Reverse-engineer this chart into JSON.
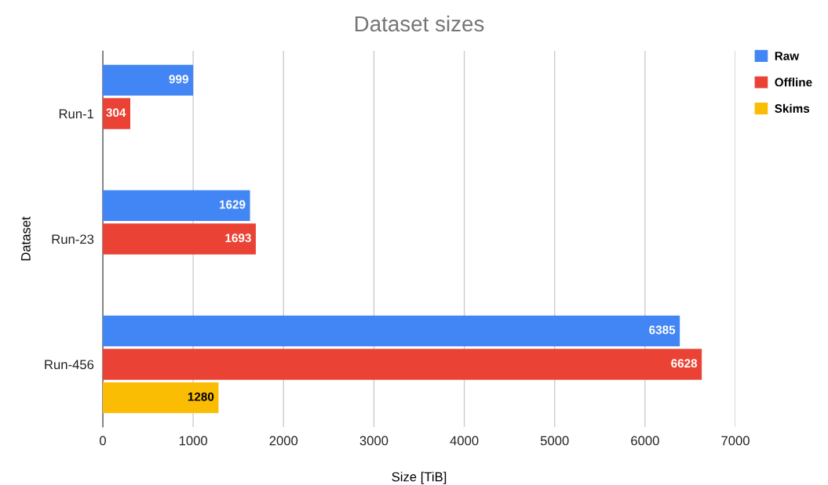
{
  "chart_data": {
    "type": "bar",
    "orientation": "horizontal",
    "title": "Dataset sizes",
    "xlabel": "Size [TiB]",
    "ylabel": "Dataset",
    "categories": [
      "Run-1",
      "Run-23",
      "Run-456"
    ],
    "series": [
      {
        "name": "Raw",
        "color": "#4285f4",
        "values": [
          999,
          1629,
          6385
        ]
      },
      {
        "name": "Offline",
        "color": "#ea4335",
        "values": [
          304,
          1693,
          6628
        ]
      },
      {
        "name": "Skims",
        "color": "#fbbc04",
        "values": [
          null,
          null,
          1280
        ]
      }
    ],
    "xlim": [
      0,
      7000
    ],
    "xticks": [
      0,
      1000,
      2000,
      3000,
      4000,
      5000,
      6000,
      7000
    ],
    "grid": "x",
    "legend": "top right",
    "data_labels": true
  }
}
